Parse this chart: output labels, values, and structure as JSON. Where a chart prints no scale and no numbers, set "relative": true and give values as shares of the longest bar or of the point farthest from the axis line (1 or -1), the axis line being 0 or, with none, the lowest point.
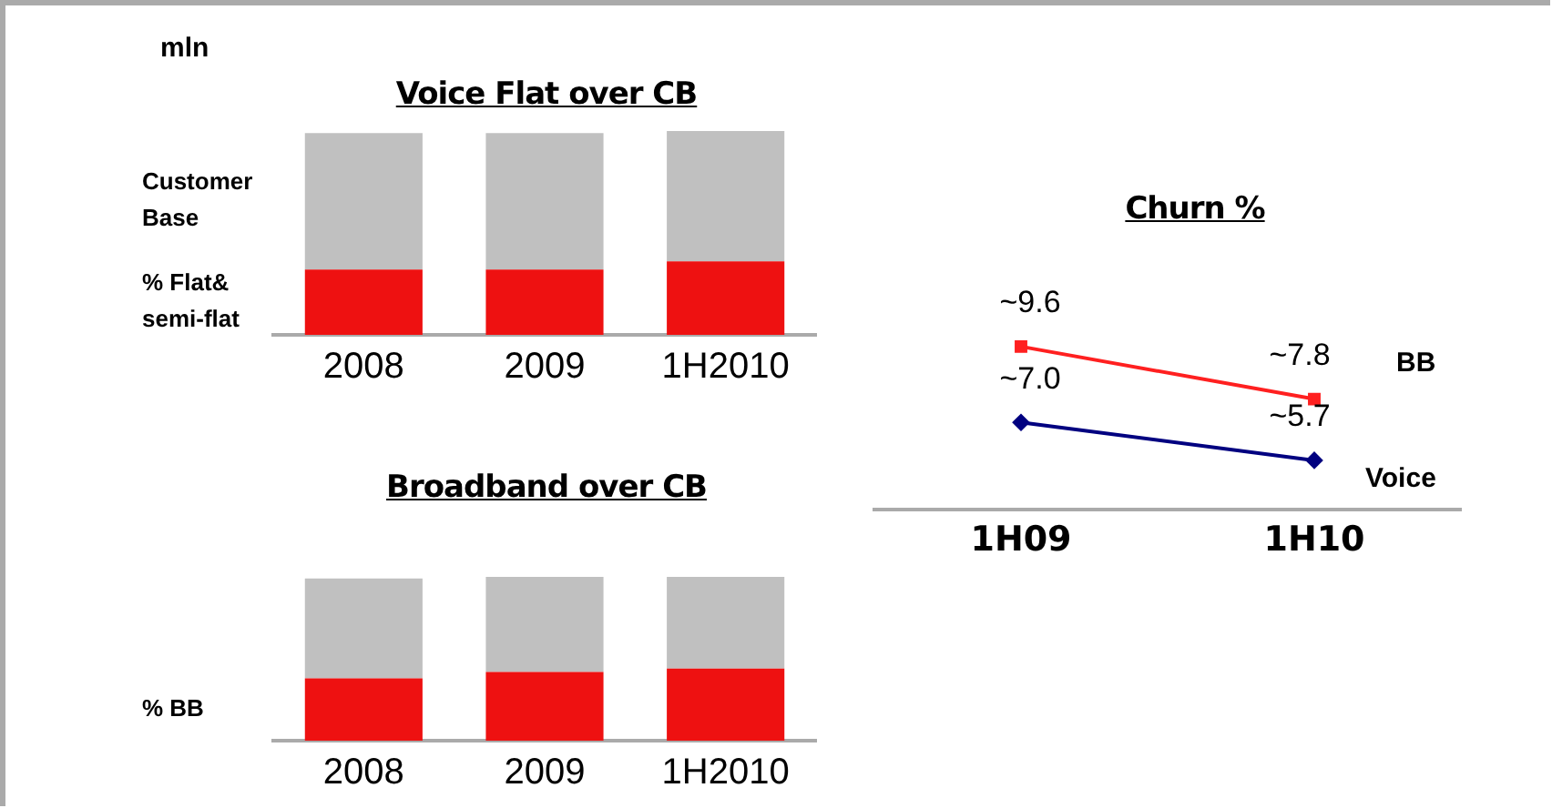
{
  "chart_data": [
    {
      "type": "bar",
      "title": "Voice Flat over CB",
      "relative": true,
      "stacked": true,
      "annotations": [
        "mln"
      ],
      "categories": [
        "2008",
        "2009",
        "1H2010"
      ],
      "legend": false,
      "grid": false,
      "series": [
        {
          "name": "% Flat& semi-flat",
          "color": "#ee1111",
          "values": [
            0.32,
            0.32,
            0.36
          ]
        },
        {
          "name": "Customer Base",
          "color": "#c0c0c0",
          "values": [
            0.67,
            0.67,
            0.64
          ]
        }
      ]
    },
    {
      "type": "bar",
      "title": "Broadband over CB",
      "relative": true,
      "stacked": true,
      "categories": [
        "2008",
        "2009",
        "1H2010"
      ],
      "legend": false,
      "grid": false,
      "series": [
        {
          "name": "% BB",
          "color": "#ee1111",
          "values": [
            0.38,
            0.42,
            0.44
          ]
        },
        {
          "color": "#c0c0c0",
          "values": [
            0.61,
            0.58,
            0.56
          ]
        }
      ]
    },
    {
      "type": "line",
      "title": "Churn %",
      "categories": [
        "1H09",
        "1H10"
      ],
      "legend": false,
      "grid": false,
      "tick_labels": "x",
      "series": [
        {
          "name": "BB",
          "color": "#ff2020",
          "marker": "square",
          "values": [
            9.6,
            7.8
          ],
          "value_labels": [
            "~9.6",
            "~7.8"
          ]
        },
        {
          "name": "Voice",
          "color": "#000080",
          "marker": "diamond",
          "values": [
            7.0,
            5.7
          ],
          "value_labels": [
            "~7.0",
            "~5.7"
          ]
        }
      ]
    }
  ]
}
